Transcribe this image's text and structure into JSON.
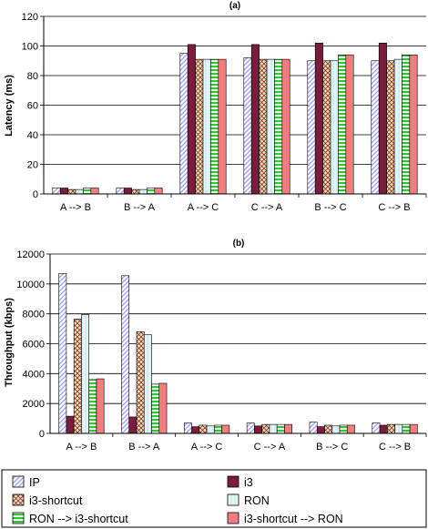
{
  "colors": {
    "ip": "#9999ff",
    "i3": "#7a1c3c",
    "i3_shortcut": "#f6dcc0",
    "ron": "#e6f6f8",
    "ron_to_i3s": "#2fc72f",
    "i3s_to_ron": "#f47c7c",
    "grid": "#000000",
    "axis": "#000000"
  },
  "legend": {
    "ip": "IP",
    "i3": "i3",
    "i3_shortcut": "i3-shortcut",
    "ron": "RON",
    "ron_to_i3s": "RON --> i3-shortcut",
    "i3s_to_ron": "i3-shortcut --> RON"
  },
  "chart_data": [
    {
      "type": "bar",
      "title": "(a)",
      "xlabel": "",
      "ylabel": "Latency (ms)",
      "ylim": [
        0,
        120
      ],
      "yticks": [
        "0",
        "20",
        "40",
        "60",
        "80",
        "100",
        "120"
      ],
      "grid": true,
      "categories": [
        "A --> B",
        "B --> A",
        "A --> C",
        "C --> A",
        "B --> C",
        "C --> B"
      ],
      "series": [
        {
          "name": "IP",
          "values": [
            4,
            4,
            95,
            92,
            90,
            90
          ]
        },
        {
          "name": "i3",
          "values": [
            4,
            4,
            101,
            101,
            102,
            102
          ]
        },
        {
          "name": "i3-shortcut",
          "values": [
            3,
            3,
            91,
            91,
            90,
            90
          ]
        },
        {
          "name": "RON",
          "values": [
            3,
            3,
            91,
            91,
            90,
            91
          ]
        },
        {
          "name": "RON --> i3-shortcut",
          "values": [
            4,
            4,
            91,
            91,
            94,
            94
          ]
        },
        {
          "name": "i3-shortcut --> RON",
          "values": [
            4,
            4,
            91,
            91,
            94,
            94
          ]
        }
      ]
    },
    {
      "type": "bar",
      "title": "(b)",
      "xlabel": "",
      "ylabel": "Throughput (kbps)",
      "ylim": [
        0,
        12000
      ],
      "yticks": [
        "0",
        "2000",
        "4000",
        "6000",
        "8000",
        "10000",
        "12000"
      ],
      "grid": true,
      "categories": [
        "A --> B",
        "B --> A",
        "A --> C",
        "C --> A",
        "B --> C",
        "C --> B"
      ],
      "series": [
        {
          "name": "IP",
          "values": [
            10700,
            10550,
            700,
            700,
            750,
            700
          ]
        },
        {
          "name": "i3",
          "values": [
            1150,
            1100,
            450,
            500,
            450,
            550
          ]
        },
        {
          "name": "i3-shortcut",
          "values": [
            7650,
            6800,
            550,
            600,
            550,
            600
          ]
        },
        {
          "name": "RON",
          "values": [
            7950,
            6600,
            500,
            600,
            500,
            600
          ]
        },
        {
          "name": "RON --> i3-shortcut",
          "values": [
            3600,
            3300,
            550,
            600,
            550,
            600
          ]
        },
        {
          "name": "i3-shortcut --> RON",
          "values": [
            3650,
            3350,
            550,
            600,
            550,
            600
          ]
        }
      ]
    }
  ]
}
